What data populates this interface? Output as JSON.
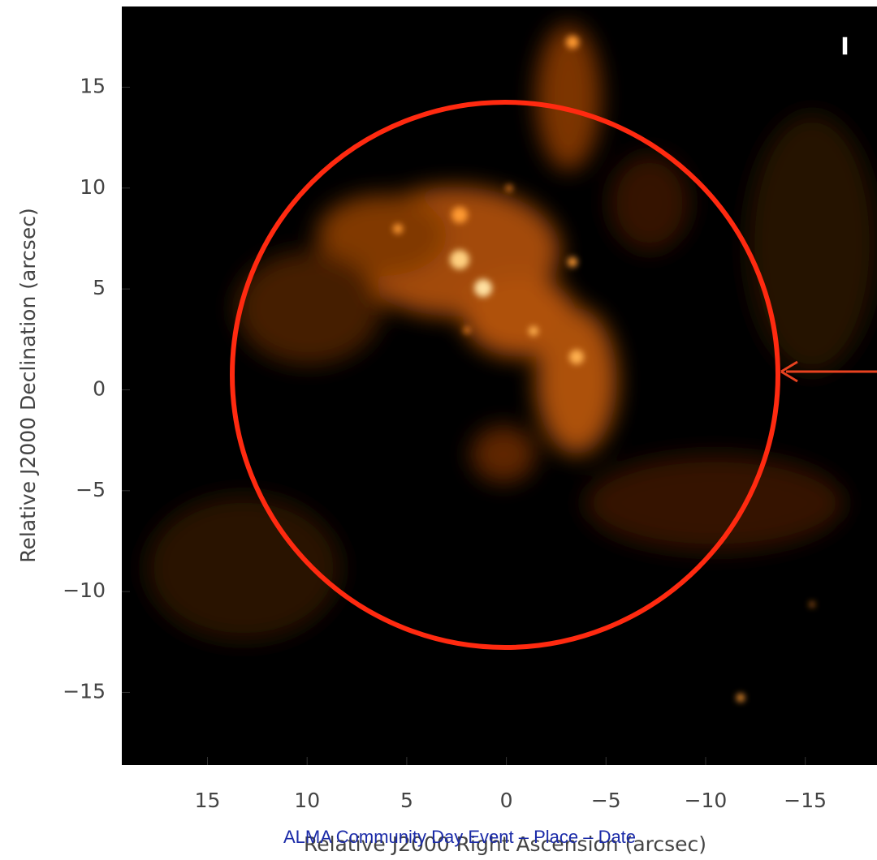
{
  "chart_data": {
    "type": "image",
    "xlabel": "Relative J2000 Right Ascension (arcsec)",
    "ylabel": "Relative J2000 Declination (arcsec)",
    "xlim": [
      19.3,
      -18.6
    ],
    "ylim": [
      -18.6,
      19
    ],
    "xticks": [
      15,
      10,
      5,
      0,
      {
        "value": -5,
        "label": "−5"
      },
      {
        "value": -10,
        "label": "−10"
      },
      {
        "value": -15,
        "label": "−15"
      }
    ],
    "yticks": [
      15,
      10,
      5,
      0,
      {
        "value": -5,
        "label": "−5"
      },
      {
        "value": -10,
        "label": "−10"
      },
      {
        "value": -15,
        "label": "−15"
      }
    ],
    "footer": "ALMA Community Day Event – Place – Date"
  }
}
